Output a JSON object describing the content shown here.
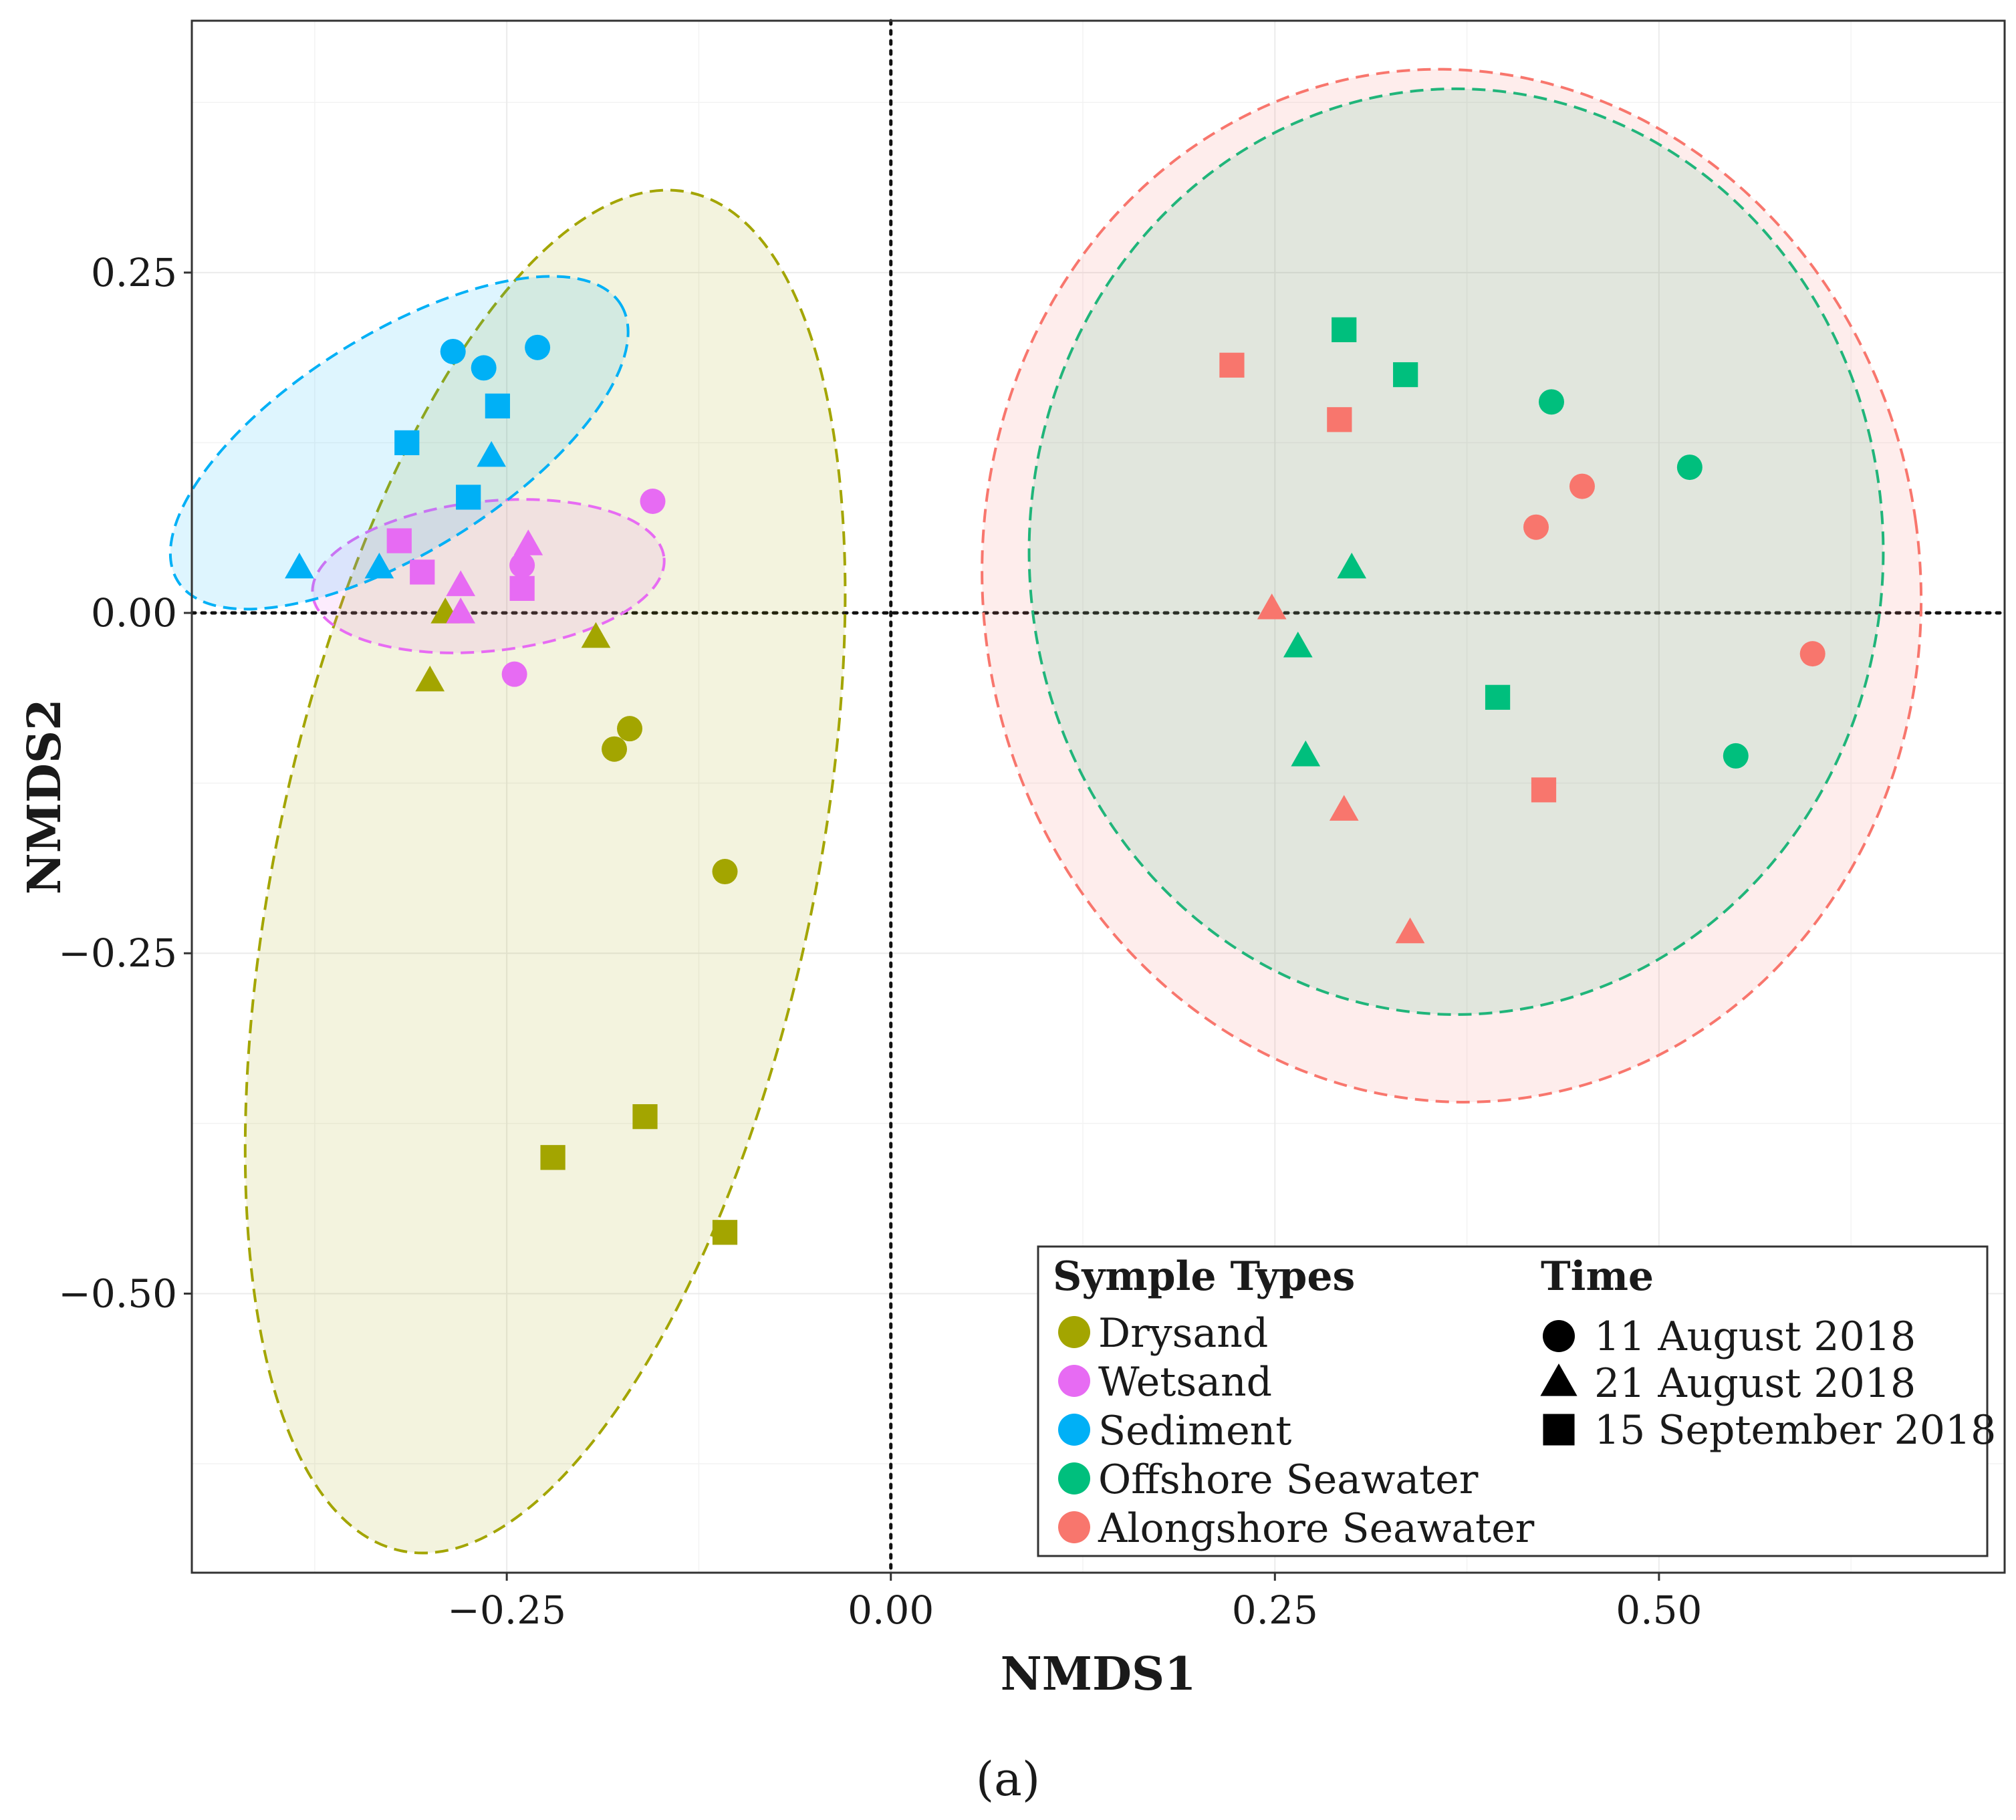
{
  "chart_data": {
    "type": "scatter",
    "xlabel": "NMDS1",
    "ylabel": "NMDS2",
    "xlim": [
      -0.455,
      0.725
    ],
    "ylim": [
      -0.705,
      0.435
    ],
    "x_ticks": [
      -0.25,
      0.0,
      0.25,
      0.5
    ],
    "x_tick_labels": [
      "−0.25",
      "0.00",
      "0.25",
      "0.50"
    ],
    "y_ticks": [
      0.25,
      0.0,
      -0.25,
      -0.5
    ],
    "y_tick_labels": [
      "0.25",
      "0.00",
      "−0.25",
      "−0.50"
    ],
    "grid": true,
    "reference_lines": {
      "x": 0,
      "y": 0
    },
    "panel_label": "(a)",
    "legend": {
      "placement": "bottom-right",
      "types_title": "Symple Types",
      "time_title": "Time"
    },
    "times": [
      {
        "label": "11 August 2018",
        "shape": "circle"
      },
      {
        "label": "21 August 2018",
        "shape": "triangle"
      },
      {
        "label": "15 September  2018",
        "shape": "square"
      }
    ],
    "series": [
      {
        "name": "Drysand",
        "color": "#a3a500",
        "ellipse": {
          "cx": -0.225,
          "cy": -0.19,
          "rx": 0.175,
          "ry": 0.51,
          "angle_deg": 12
        },
        "points": [
          {
            "x": -0.18,
            "y": -0.1,
            "time": 0
          },
          {
            "x": -0.17,
            "y": -0.085,
            "time": 0
          },
          {
            "x": -0.108,
            "y": -0.19,
            "time": 0
          },
          {
            "x": -0.3,
            "y": -0.05,
            "time": 1
          },
          {
            "x": -0.192,
            "y": -0.018,
            "time": 1
          },
          {
            "x": -0.29,
            "y": 0.0,
            "time": 1
          },
          {
            "x": -0.22,
            "y": -0.4,
            "time": 2
          },
          {
            "x": -0.16,
            "y": -0.37,
            "time": 2
          },
          {
            "x": -0.108,
            "y": -0.455,
            "time": 2
          }
        ]
      },
      {
        "name": "Wetsand",
        "color": "#e76bf3",
        "ellipse": {
          "cx": -0.262,
          "cy": 0.027,
          "rx": 0.115,
          "ry": 0.055,
          "angle_deg": -6
        },
        "points": [
          {
            "x": -0.155,
            "y": 0.082,
            "time": 0
          },
          {
            "x": -0.24,
            "y": 0.035,
            "time": 0
          },
          {
            "x": -0.245,
            "y": -0.045,
            "time": 0
          },
          {
            "x": -0.236,
            "y": 0.05,
            "time": 1
          },
          {
            "x": -0.28,
            "y": 0.02,
            "time": 1
          },
          {
            "x": -0.28,
            "y": 0.0,
            "time": 1
          },
          {
            "x": -0.32,
            "y": 0.053,
            "time": 2
          },
          {
            "x": -0.305,
            "y": 0.03,
            "time": 2
          },
          {
            "x": -0.24,
            "y": 0.018,
            "time": 2
          }
        ]
      },
      {
        "name": "Sediment",
        "color": "#00b0f6",
        "ellipse": {
          "cx": -0.32,
          "cy": 0.125,
          "rx": 0.17,
          "ry": 0.08,
          "angle_deg": -32
        },
        "points": [
          {
            "x": -0.285,
            "y": 0.192,
            "time": 0
          },
          {
            "x": -0.265,
            "y": 0.18,
            "time": 0
          },
          {
            "x": -0.23,
            "y": 0.195,
            "time": 0
          },
          {
            "x": -0.385,
            "y": 0.033,
            "time": 1
          },
          {
            "x": -0.333,
            "y": 0.033,
            "time": 1
          },
          {
            "x": -0.26,
            "y": 0.115,
            "time": 1
          },
          {
            "x": -0.315,
            "y": 0.125,
            "time": 2
          },
          {
            "x": -0.256,
            "y": 0.152,
            "time": 2
          },
          {
            "x": -0.275,
            "y": 0.085,
            "time": 2
          }
        ]
      },
      {
        "name": "Offshore Seawater",
        "color": "#00bf7d",
        "ellipse": {
          "cx": 0.368,
          "cy": 0.045,
          "rx": 0.278,
          "ry": 0.34,
          "angle_deg": 0
        },
        "points": [
          {
            "x": 0.43,
            "y": 0.155,
            "time": 0
          },
          {
            "x": 0.52,
            "y": 0.107,
            "time": 0
          },
          {
            "x": 0.55,
            "y": -0.105,
            "time": 0
          },
          {
            "x": 0.3,
            "y": 0.033,
            "time": 1
          },
          {
            "x": 0.265,
            "y": -0.025,
            "time": 1
          },
          {
            "x": 0.27,
            "y": -0.105,
            "time": 1
          },
          {
            "x": 0.295,
            "y": 0.208,
            "time": 2
          },
          {
            "x": 0.335,
            "y": 0.175,
            "time": 2
          },
          {
            "x": 0.395,
            "y": -0.062,
            "time": 2
          }
        ]
      },
      {
        "name": "Alongshore Seawater",
        "color": "#f8766d",
        "ellipse": {
          "cx": 0.365,
          "cy": 0.02,
          "rx": 0.305,
          "ry": 0.38,
          "angle_deg": -8
        },
        "points": [
          {
            "x": 0.45,
            "y": 0.093,
            "time": 0
          },
          {
            "x": 0.42,
            "y": 0.063,
            "time": 0
          },
          {
            "x": 0.6,
            "y": -0.03,
            "time": 0
          },
          {
            "x": 0.248,
            "y": 0.003,
            "time": 1
          },
          {
            "x": 0.295,
            "y": -0.145,
            "time": 1
          },
          {
            "x": 0.338,
            "y": -0.235,
            "time": 1
          },
          {
            "x": 0.222,
            "y": 0.182,
            "time": 2
          },
          {
            "x": 0.292,
            "y": 0.142,
            "time": 2
          },
          {
            "x": 0.425,
            "y": -0.13,
            "time": 2
          }
        ]
      }
    ]
  }
}
